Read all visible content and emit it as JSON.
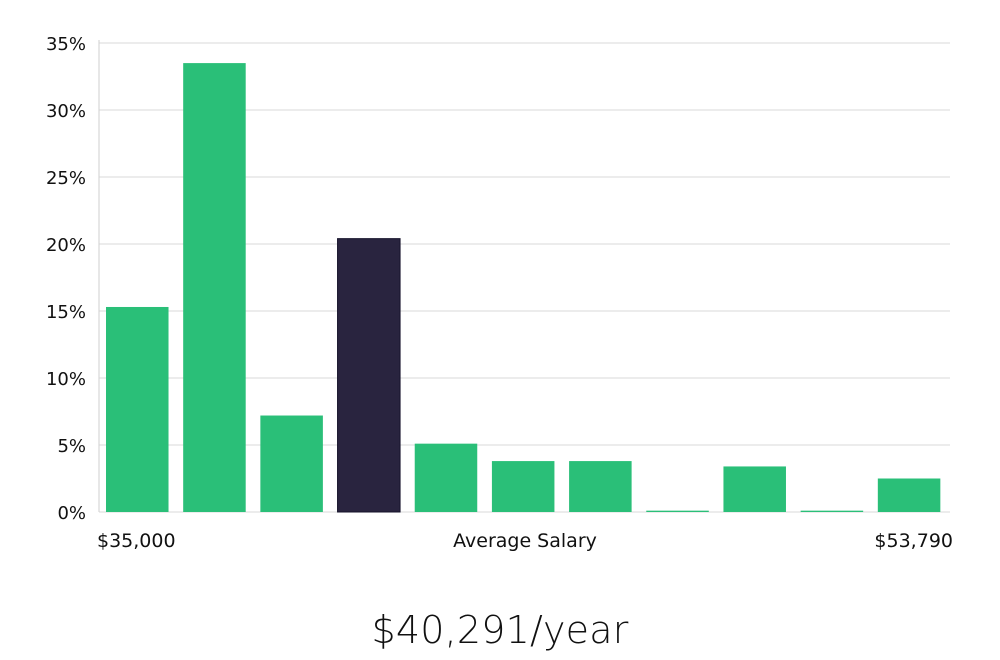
{
  "caption": "$40,291/year",
  "colors": {
    "bar": "#2abf78",
    "highlight": "#29243f",
    "highlight_stroke": "#15122a"
  },
  "chart_data": {
    "type": "bar",
    "xlabel": "Average Salary",
    "x_min_label": "$35,000",
    "x_max_label": "$53,790",
    "ylabel": "",
    "y_tick_labels": [
      "0%",
      "5%",
      "10%",
      "15%",
      "20%",
      "25%",
      "30%",
      "35%"
    ],
    "y_ticks": [
      0,
      5,
      10,
      15,
      20,
      25,
      30,
      35
    ],
    "ylim": [
      0,
      35
    ],
    "values": [
      15.3,
      33.5,
      7.2,
      20.4,
      5.1,
      3.8,
      3.8,
      0.1,
      3.4,
      0.1,
      2.5
    ],
    "highlight_index": 3,
    "grid": true
  }
}
